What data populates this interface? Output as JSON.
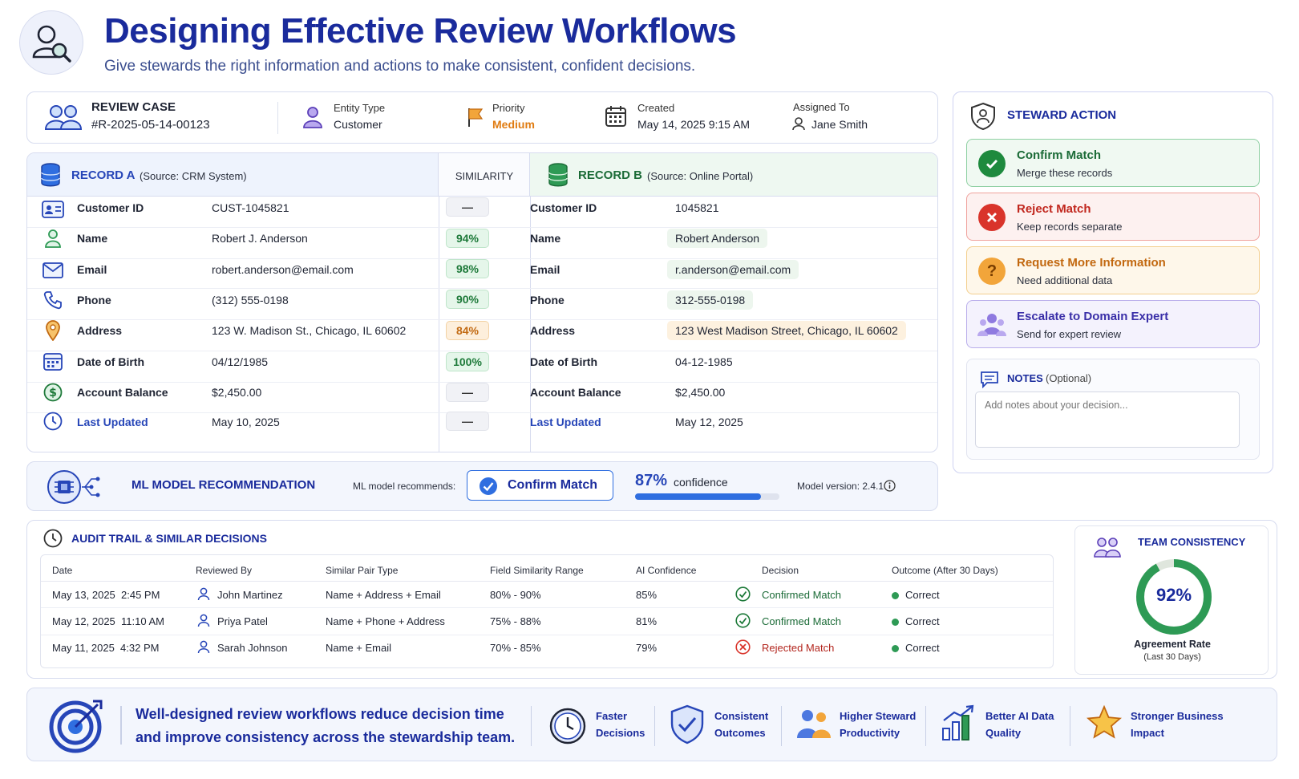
{
  "header": {
    "title": "Designing Effective Review Workflows",
    "subtitle": "Give stewards the right information and actions to make consistent, confident decisions."
  },
  "case": {
    "label": "REVIEW CASE",
    "id": "#R-2025-05-14-00123",
    "entity_type_label": "Entity Type",
    "entity_type": "Customer",
    "priority_label": "Priority",
    "priority": "Medium",
    "created_label": "Created",
    "created": "May 14, 2025 9:15 AM",
    "assigned_label": "Assigned To",
    "assigned": "Jane Smith"
  },
  "records": {
    "a_title": "RECORD A",
    "a_source": "(Source: CRM System)",
    "similarity_title": "SIMILARITY",
    "b_title": "RECORD B",
    "b_source": "(Source: Online Portal)",
    "rows": [
      {
        "field": "Customer ID",
        "a": "CUST-1045821",
        "sim": "—",
        "b_field": "Customer ID",
        "b": "1045821"
      },
      {
        "field": "Name",
        "a": "Robert J. Anderson",
        "sim": "94%",
        "b_field": "Name",
        "b": "Robert Anderson"
      },
      {
        "field": "Email",
        "a": "robert.anderson@email.com",
        "sim": "98%",
        "b_field": "Email",
        "b": "r.anderson@email.com"
      },
      {
        "field": "Phone",
        "a": "(312) 555-0198",
        "sim": "90%",
        "b_field": "Phone",
        "b": "312-555-0198"
      },
      {
        "field": "Address",
        "a": "123 W. Madison St., Chicago, IL 60602",
        "sim": "84%",
        "b_field": "Address",
        "b": "123 West Madison Street, Chicago, IL 60602"
      },
      {
        "field": "Date of Birth",
        "a": "04/12/1985",
        "sim": "100%",
        "b_field": "Date of Birth",
        "b": "04-12-1985"
      },
      {
        "field": "Account Balance",
        "a": "$2,450.00",
        "sim": "—",
        "b_field": "Account Balance",
        "b": "$2,450.00"
      },
      {
        "field": "Last Updated",
        "a": "May 10, 2025",
        "sim": "—",
        "b_field": "Last Updated",
        "b": "May 12, 2025"
      }
    ]
  },
  "ml": {
    "title": "ML MODEL RECOMMENDATION",
    "recommends_label": "ML model recommends:",
    "recommendation": "Confirm Match",
    "confidence_value": "87%",
    "confidence_label": "confidence",
    "confidence_fraction": 0.87,
    "version": "Model version: 2.4.1"
  },
  "steward": {
    "title": "STEWARD ACTION",
    "actions": [
      {
        "title": "Confirm Match",
        "sub": "Merge these records",
        "color": "#1e8a3e"
      },
      {
        "title": "Reject Match",
        "sub": "Keep records separate",
        "color": "#d9342b"
      },
      {
        "title": "Request More Information",
        "sub": "Need additional data",
        "color": "#c2680f"
      },
      {
        "title": "Escalate to Domain Expert",
        "sub": "Send for expert review",
        "color": "#3a2fa8"
      }
    ],
    "notes_title": "NOTES",
    "notes_optional": "(Optional)",
    "notes_placeholder": "Add notes about your decision..."
  },
  "audit": {
    "title": "AUDIT TRAIL & SIMILAR DECISIONS",
    "columns": [
      "Date",
      "Reviewed By",
      "Similar Pair Type",
      "Field Similarity Range",
      "AI Confidence",
      "Decision",
      "Outcome (After 30 Days)"
    ],
    "rows": [
      {
        "date": "May 13, 2025",
        "time": "2:45 PM",
        "reviewer": "John Martinez",
        "pair": "Name + Address + Email",
        "range": "80% - 90%",
        "conf": "85%",
        "decision": "Confirmed Match",
        "outcome": "Correct"
      },
      {
        "date": "May 12, 2025",
        "time": "11:10 AM",
        "reviewer": "Priya Patel",
        "pair": "Name + Phone + Address",
        "range": "75% - 88%",
        "conf": "81%",
        "decision": "Confirmed Match",
        "outcome": "Correct"
      },
      {
        "date": "May 11, 2025",
        "time": "4:32 PM",
        "reviewer": "Sarah Johnson",
        "pair": "Name + Email",
        "range": "70% - 85%",
        "conf": "79%",
        "decision": "Rejected Match",
        "outcome": "Correct"
      }
    ]
  },
  "team": {
    "title": "TEAM CONSISTENCY",
    "value": "92%",
    "fraction": 0.92,
    "label": "Agreement Rate",
    "sublabel": "(Last 30 Days)"
  },
  "footer": {
    "message_line1": "Well-designed review workflows reduce decision time",
    "message_line2": "and improve consistency across the stewardship team.",
    "benefits": [
      {
        "l1": "Faster",
        "l2": "Decisions"
      },
      {
        "l1": "Consistent",
        "l2": "Outcomes"
      },
      {
        "l1": "Higher Steward",
        "l2": "Productivity"
      },
      {
        "l1": "Better AI Data",
        "l2": "Quality"
      },
      {
        "l1": "Stronger Business",
        "l2": "Impact"
      }
    ]
  },
  "colors": {
    "primary": "#1a2b9c",
    "green": "#1e8a3e",
    "red": "#d9342b",
    "orange": "#e08a1e",
    "purple": "#5b3fb8"
  }
}
